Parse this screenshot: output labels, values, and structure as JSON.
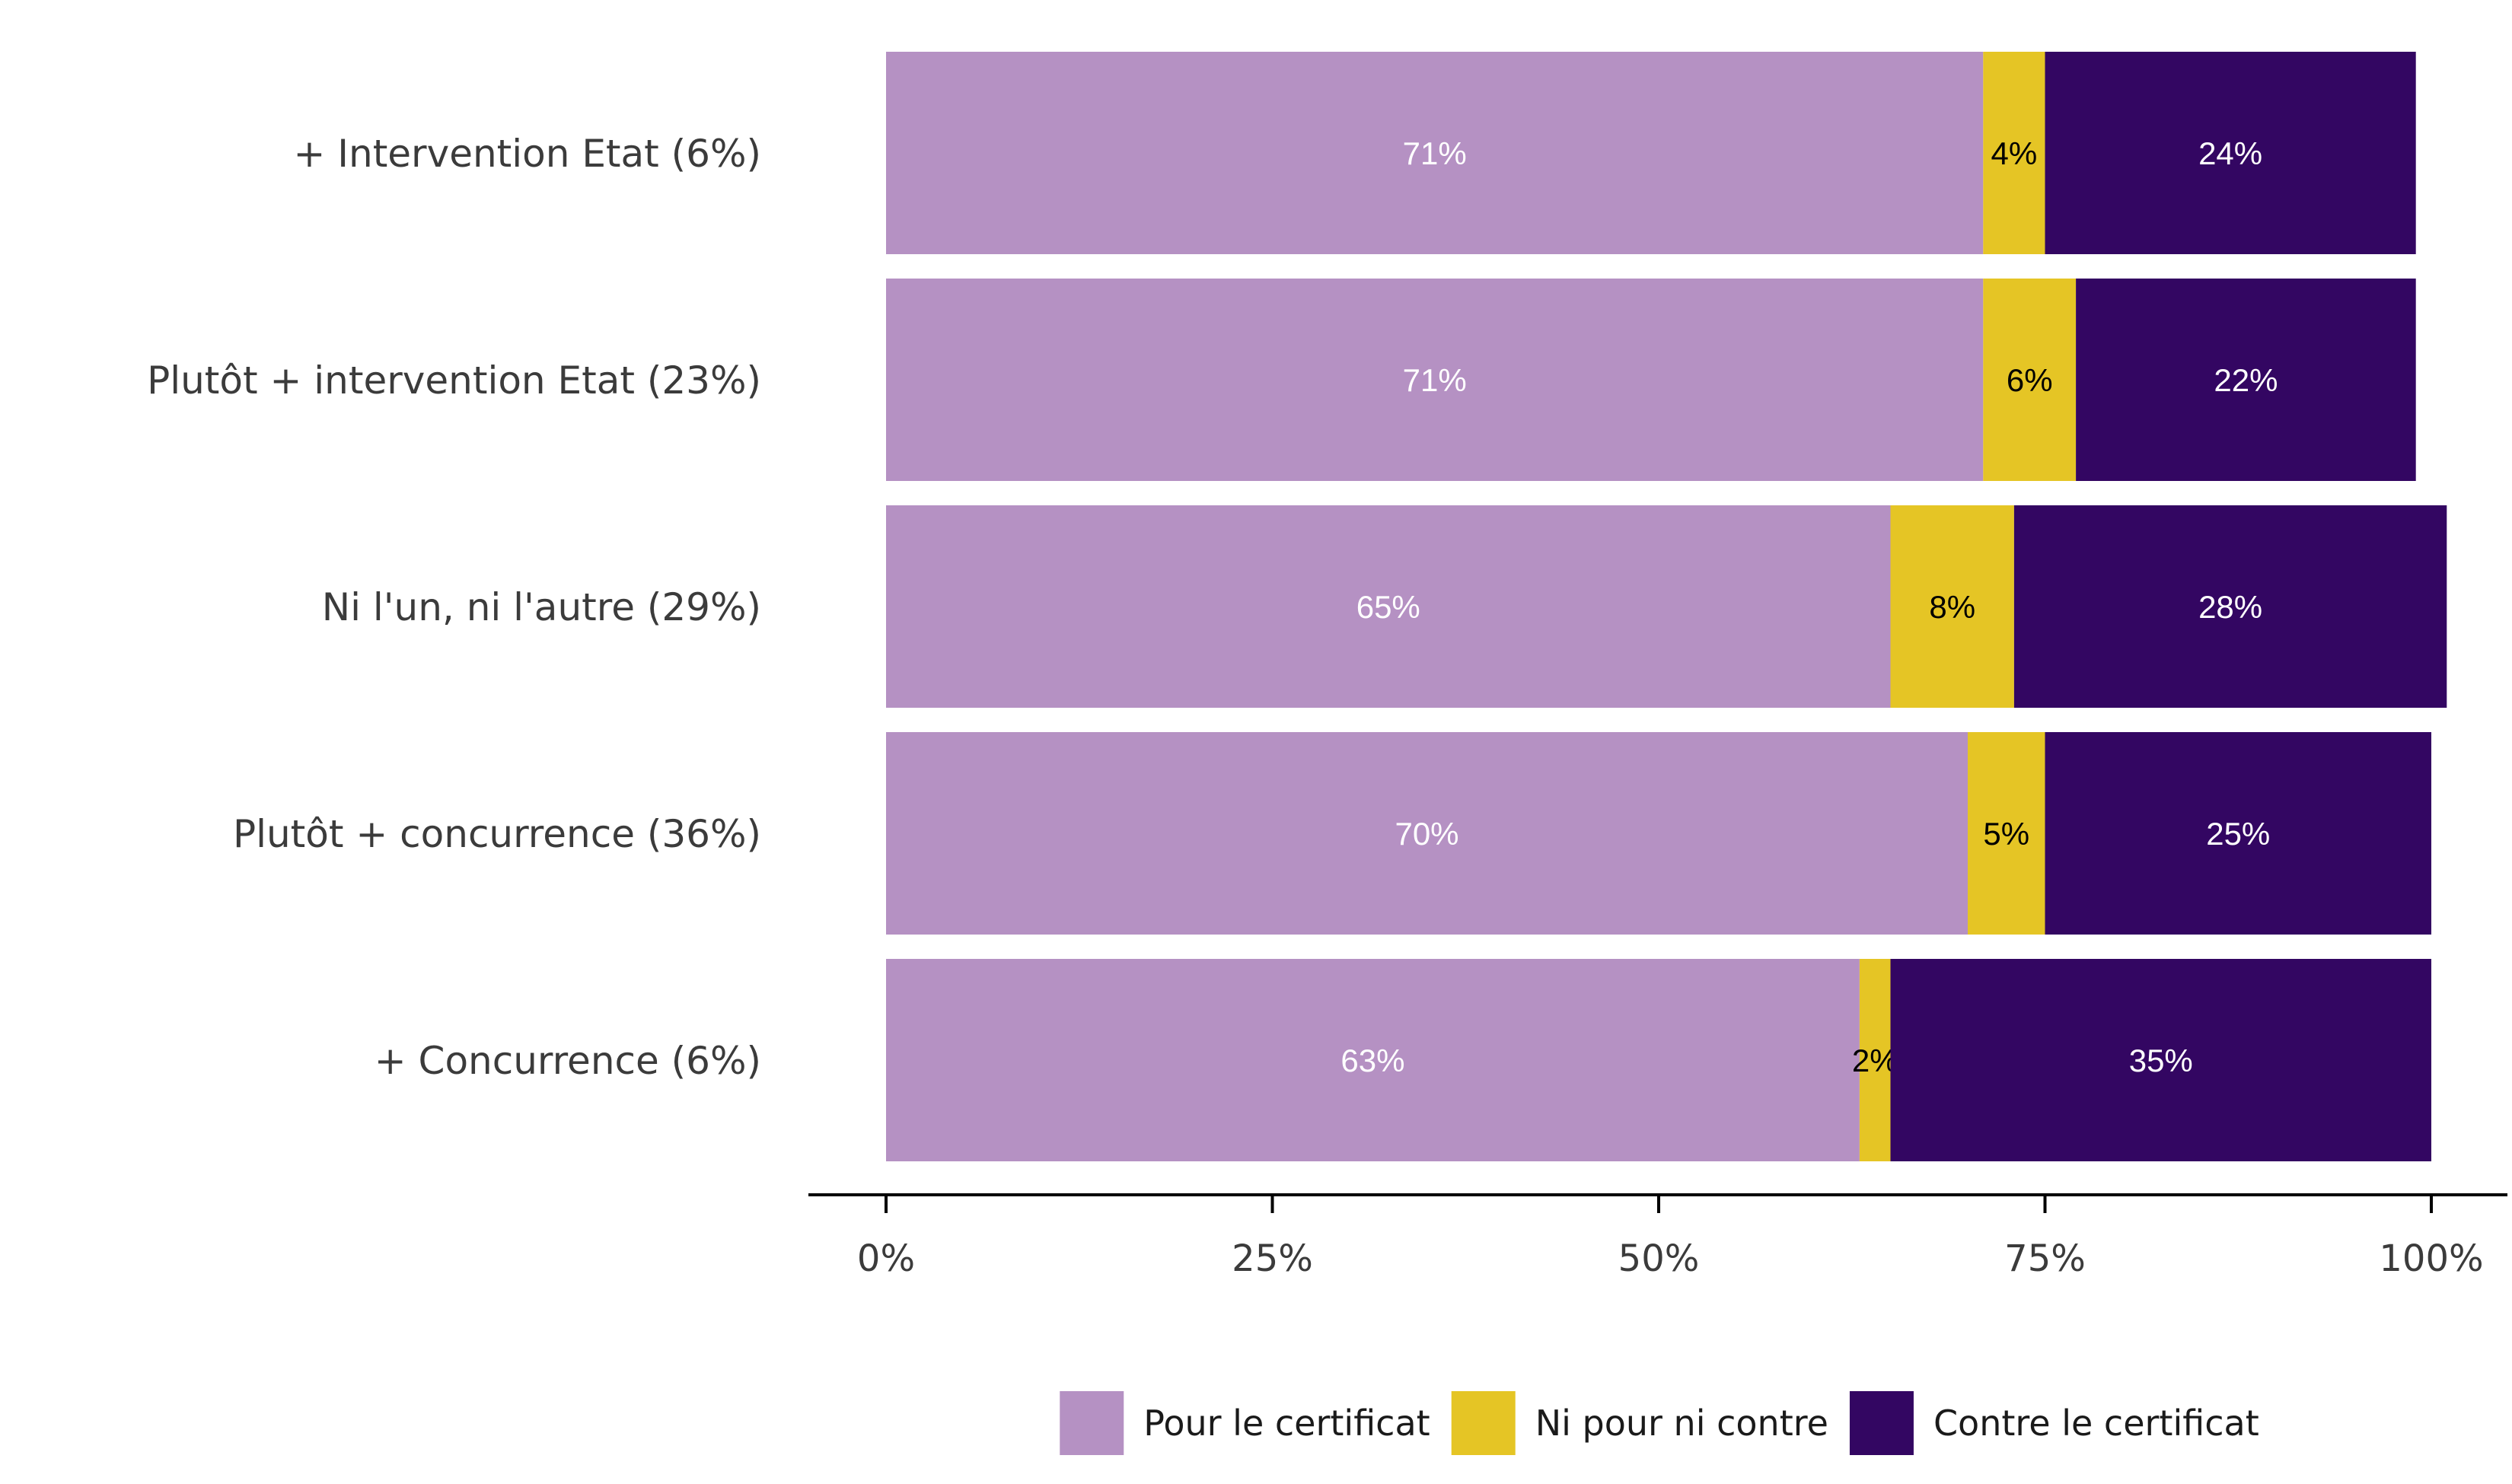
{
  "chart_data": {
    "type": "bar",
    "orientation": "horizontal",
    "stacked": true,
    "categories": [
      "+ Intervention Etat (6%)",
      "Plutôt + intervention Etat (23%)",
      "Ni l'un, ni l'autre (29%)",
      "Plutôt + concurrence (36%)",
      "+ Concurrence (6%)"
    ],
    "series": [
      {
        "name": "Pour le certificat",
        "color": "#b591c3",
        "label_color": "#ffffff",
        "values": [
          71,
          71,
          65,
          70,
          63
        ],
        "data_labels": [
          "71%",
          "71%",
          "65%",
          "70%",
          "63%"
        ]
      },
      {
        "name": "Ni pour ni contre",
        "color": "#e5c525",
        "label_color": "#000000",
        "values": [
          4,
          6,
          8,
          5,
          2
        ],
        "data_labels": [
          "4%",
          "6%",
          "8%",
          "5%",
          "2%"
        ]
      },
      {
        "name": "Contre le certificat",
        "color": "#330662",
        "label_color": "#ffffff",
        "values": [
          24,
          22,
          28,
          25,
          35
        ],
        "data_labels": [
          "24%",
          "22%",
          "28%",
          "25%",
          "35%"
        ]
      }
    ],
    "xlim": [
      0,
      100
    ],
    "x_ticks": [
      0,
      25,
      50,
      75,
      100
    ],
    "x_tick_labels": [
      "0%",
      "25%",
      "50%",
      "75%",
      "100%"
    ],
    "title": "",
    "xlabel": "",
    "ylabel": "",
    "grid": false,
    "legend_position": "bottom"
  }
}
